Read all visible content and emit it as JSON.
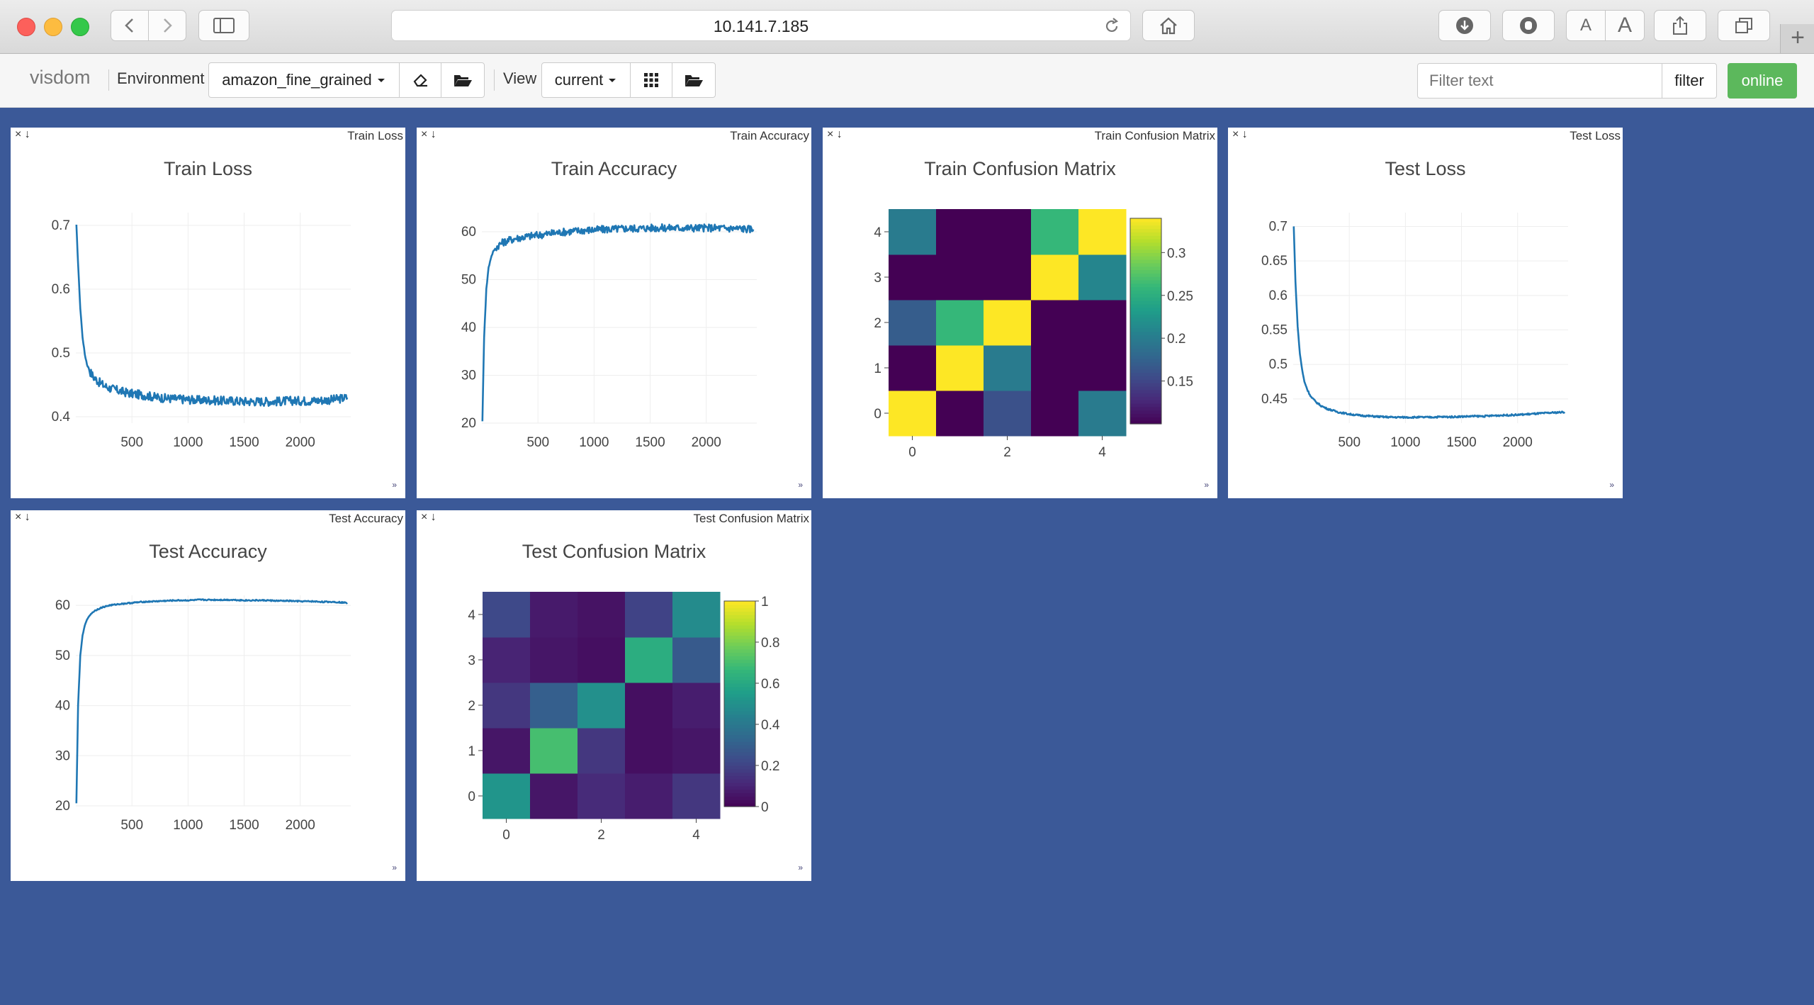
{
  "browser": {
    "url": "10.141.7.185",
    "reader_small": "A",
    "reader_large": "A",
    "new_tab": "+"
  },
  "toolbar": {
    "brand": "visdom",
    "environment_label": "Environment",
    "environment_value": "amazon_fine_grained",
    "view_label": "View",
    "view_value": "current",
    "filter_placeholder": "Filter text",
    "filter_button": "filter",
    "status_button": "online",
    "status_color": "#5cb85c"
  },
  "panes": [
    {
      "title": "Train Loss",
      "chart_data": {
        "type": "line",
        "title": "Train Loss",
        "xlabel": "",
        "ylabel": "",
        "xlim": [
          0,
          2450
        ],
        "ylim": [
          0.39,
          0.72
        ],
        "xticks": [
          500,
          1000,
          1500,
          2000
        ],
        "yticks": [
          0.4,
          0.5,
          0.6,
          0.7
        ],
        "grid": true,
        "series": [
          {
            "color": "#1f77b4",
            "x": [
              5,
              20,
              40,
              60,
              80,
              100,
              130,
              160,
              200,
              250,
              300,
              400,
              500,
              600,
              700,
              800,
              900,
              1000,
              1100,
              1200,
              1300,
              1400,
              1500,
              1600,
              1700,
              1800,
              1900,
              2000,
              2100,
              2200,
              2300,
              2420
            ],
            "y": [
              0.7,
              0.64,
              0.57,
              0.525,
              0.498,
              0.482,
              0.47,
              0.462,
              0.455,
              0.449,
              0.445,
              0.44,
              0.436,
              0.434,
              0.431,
              0.429,
              0.428,
              0.427,
              0.426,
              0.426,
              0.425,
              0.425,
              0.424,
              0.424,
              0.424,
              0.424,
              0.425,
              0.425,
              0.425,
              0.426,
              0.427,
              0.43
            ],
            "noise": 0.007
          }
        ]
      }
    },
    {
      "title": "Train Accuracy",
      "chart_data": {
        "type": "line",
        "title": "Train Accuracy",
        "xlabel": "",
        "ylabel": "",
        "xlim": [
          0,
          2450
        ],
        "ylim": [
          20,
          64
        ],
        "xticks": [
          500,
          1000,
          1500,
          2000
        ],
        "yticks": [
          20,
          30,
          40,
          50,
          60
        ],
        "grid": true,
        "series": [
          {
            "color": "#1f77b4",
            "x": [
              5,
              20,
              40,
              60,
              80,
              100,
              130,
              160,
              200,
              250,
              300,
              400,
              500,
              600,
              700,
              800,
              900,
              1000,
              1100,
              1200,
              1300,
              1400,
              1500,
              1600,
              1700,
              1800,
              1900,
              2000,
              2100,
              2200,
              2300,
              2420
            ],
            "y": [
              20.5,
              38,
              48,
              52.5,
              54.5,
              55.8,
              56.8,
              57.4,
              57.9,
              58.3,
              58.6,
              59.0,
              59.3,
              59.6,
              59.9,
              60.1,
              60.3,
              60.4,
              60.5,
              60.6,
              60.7,
              60.7,
              60.8,
              60.8,
              60.8,
              60.8,
              60.8,
              60.8,
              60.8,
              60.7,
              60.7,
              60.5
            ],
            "noise": 0.8
          }
        ]
      }
    },
    {
      "title": "Train Confusion Matrix",
      "chart_data": {
        "type": "heatmap",
        "title": "Train Confusion Matrix",
        "x": [
          0,
          1,
          2,
          3,
          4
        ],
        "y": [
          0,
          1,
          2,
          3,
          4
        ],
        "z": [
          [
            0.34,
            0.1,
            0.16,
            0.1,
            0.2
          ],
          [
            0.1,
            0.34,
            0.2,
            0.1,
            0.1
          ],
          [
            0.17,
            0.26,
            0.34,
            0.1,
            0.1
          ],
          [
            0.1,
            0.1,
            0.1,
            0.34,
            0.21
          ],
          [
            0.2,
            0.1,
            0.1,
            0.26,
            0.34
          ]
        ],
        "xticks": [
          0,
          2,
          4
        ],
        "yticks": [
          0,
          1,
          2,
          3,
          4
        ],
        "colorbar": {
          "min": 0.1,
          "max": 0.34,
          "ticks": [
            0.15,
            0.2,
            0.25,
            0.3
          ],
          "ticklabels": [
            "0.15",
            "0.2",
            "0.25",
            "0.3"
          ]
        },
        "colorscale": "viridis"
      }
    },
    {
      "title": "Test Loss",
      "chart_data": {
        "type": "line",
        "title": "Test Loss",
        "xlabel": "",
        "ylabel": "",
        "xlim": [
          0,
          2450
        ],
        "ylim": [
          0.415,
          0.72
        ],
        "xticks": [
          500,
          1000,
          1500,
          2000
        ],
        "yticks": [
          0.45,
          0.5,
          0.55,
          0.6,
          0.65,
          0.7
        ],
        "grid": true,
        "series": [
          {
            "color": "#1f77b4",
            "x": [
              5,
              20,
              40,
              60,
              80,
              100,
              130,
              160,
              200,
              250,
              300,
              400,
              500,
              600,
              700,
              800,
              900,
              1000,
              1100,
              1200,
              1300,
              1400,
              1500,
              1600,
              1700,
              1800,
              1900,
              2000,
              2100,
              2200,
              2300,
              2420
            ],
            "y": [
              0.7,
              0.62,
              0.555,
              0.515,
              0.492,
              0.475,
              0.462,
              0.453,
              0.446,
              0.44,
              0.436,
              0.431,
              0.428,
              0.426,
              0.425,
              0.424,
              0.4235,
              0.4235,
              0.4235,
              0.4235,
              0.424,
              0.424,
              0.4245,
              0.425,
              0.425,
              0.426,
              0.4265,
              0.427,
              0.428,
              0.429,
              0.43,
              0.431
            ],
            "noise": 0.0012
          }
        ]
      }
    },
    {
      "title": "Test Accuracy",
      "chart_data": {
        "type": "line",
        "title": "Test Accuracy",
        "xlabel": "",
        "ylabel": "",
        "xlim": [
          0,
          2450
        ],
        "ylim": [
          20,
          62
        ],
        "xticks": [
          500,
          1000,
          1500,
          2000
        ],
        "yticks": [
          20,
          30,
          40,
          50,
          60
        ],
        "grid": true,
        "series": [
          {
            "color": "#1f77b4",
            "x": [
              5,
              20,
              40,
              60,
              80,
              100,
              130,
              160,
              200,
              250,
              300,
              400,
              500,
              600,
              700,
              800,
              900,
              1000,
              1100,
              1200,
              1300,
              1400,
              1500,
              1600,
              1700,
              1800,
              1900,
              2000,
              2100,
              2200,
              2300,
              2420
            ],
            "y": [
              20.5,
              40,
              50,
              54,
              56,
              57.2,
              58.2,
              58.8,
              59.3,
              59.7,
              60.0,
              60.3,
              60.5,
              60.7,
              60.8,
              60.9,
              61.0,
              61.0,
              61.1,
              61.1,
              61.1,
              61.1,
              61.0,
              61.0,
              61.0,
              60.9,
              60.9,
              60.8,
              60.8,
              60.7,
              60.7,
              60.5
            ],
            "noise": 0.12
          }
        ]
      }
    },
    {
      "title": "Test Confusion Matrix",
      "chart_data": {
        "type": "heatmap",
        "title": "Test Confusion Matrix",
        "x": [
          0,
          1,
          2,
          3,
          4
        ],
        "y": [
          0,
          1,
          2,
          3,
          4
        ],
        "z": [
          [
            0.52,
            0.06,
            0.12,
            0.08,
            0.16
          ],
          [
            0.06,
            0.7,
            0.16,
            0.04,
            0.06
          ],
          [
            0.16,
            0.3,
            0.5,
            0.04,
            0.08
          ],
          [
            0.1,
            0.06,
            0.04,
            0.62,
            0.28
          ],
          [
            0.22,
            0.07,
            0.05,
            0.2,
            0.48
          ]
        ],
        "xticks": [
          0,
          2,
          4
        ],
        "yticks": [
          0,
          1,
          2,
          3,
          4
        ],
        "colorbar": {
          "min": 0,
          "max": 1,
          "ticks": [
            0,
            0.2,
            0.4,
            0.6,
            0.8,
            1
          ],
          "ticklabels": [
            "0",
            "0.2",
            "0.4",
            "0.6",
            "0.8",
            "1"
          ]
        },
        "colorscale": "viridis"
      }
    }
  ]
}
